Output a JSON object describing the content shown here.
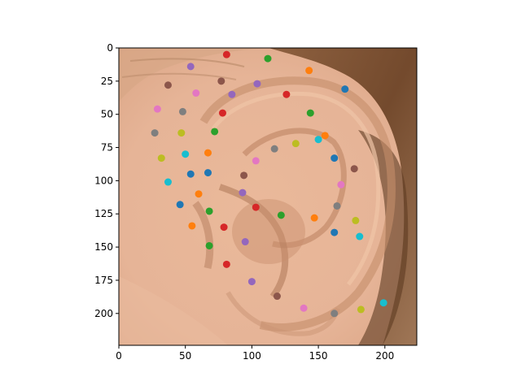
{
  "chart_data": {
    "type": "scatter",
    "background": "ear image (photo)",
    "x_ticks": [
      0,
      50,
      100,
      150,
      200
    ],
    "y_ticks": [
      0,
      25,
      50,
      75,
      100,
      125,
      150,
      175,
      200
    ],
    "xlim": [
      0,
      224
    ],
    "ylim": [
      224,
      0
    ],
    "y_inverted": true,
    "grid": false,
    "colors": {
      "blue": "#1f77b4",
      "orange": "#ff7f0e",
      "green": "#2ca02c",
      "red": "#d62728",
      "purple": "#9467bd",
      "brown": "#8c564b",
      "pink": "#e377c2",
      "gray": "#7f7f7f",
      "olive": "#bcbd22",
      "cyan": "#17becf"
    },
    "points": [
      {
        "x": 81,
        "y": 5,
        "color": "red"
      },
      {
        "x": 112,
        "y": 8,
        "color": "green"
      },
      {
        "x": 54,
        "y": 14,
        "color": "purple"
      },
      {
        "x": 143,
        "y": 17,
        "color": "orange"
      },
      {
        "x": 77,
        "y": 25,
        "color": "brown"
      },
      {
        "x": 37,
        "y": 28,
        "color": "brown"
      },
      {
        "x": 104,
        "y": 27,
        "color": "purple"
      },
      {
        "x": 170,
        "y": 31,
        "color": "blue"
      },
      {
        "x": 58,
        "y": 34,
        "color": "pink"
      },
      {
        "x": 85,
        "y": 35,
        "color": "purple"
      },
      {
        "x": 126,
        "y": 35,
        "color": "red"
      },
      {
        "x": 29,
        "y": 46,
        "color": "pink"
      },
      {
        "x": 48,
        "y": 48,
        "color": "gray"
      },
      {
        "x": 78,
        "y": 49,
        "color": "red"
      },
      {
        "x": 144,
        "y": 49,
        "color": "green"
      },
      {
        "x": 27,
        "y": 64,
        "color": "gray"
      },
      {
        "x": 47,
        "y": 64,
        "color": "olive"
      },
      {
        "x": 72,
        "y": 63,
        "color": "green"
      },
      {
        "x": 155,
        "y": 66,
        "color": "orange"
      },
      {
        "x": 150,
        "y": 69,
        "color": "cyan"
      },
      {
        "x": 133,
        "y": 72,
        "color": "olive"
      },
      {
        "x": 117,
        "y": 76,
        "color": "gray"
      },
      {
        "x": 50,
        "y": 80,
        "color": "cyan"
      },
      {
        "x": 67,
        "y": 79,
        "color": "orange"
      },
      {
        "x": 32,
        "y": 83,
        "color": "olive"
      },
      {
        "x": 162,
        "y": 83,
        "color": "blue"
      },
      {
        "x": 103,
        "y": 85,
        "color": "pink"
      },
      {
        "x": 177,
        "y": 91,
        "color": "brown"
      },
      {
        "x": 54,
        "y": 95,
        "color": "blue"
      },
      {
        "x": 67,
        "y": 94,
        "color": "blue"
      },
      {
        "x": 94,
        "y": 96,
        "color": "brown"
      },
      {
        "x": 37,
        "y": 101,
        "color": "cyan"
      },
      {
        "x": 167,
        "y": 103,
        "color": "pink"
      },
      {
        "x": 60,
        "y": 110,
        "color": "orange"
      },
      {
        "x": 93,
        "y": 109,
        "color": "purple"
      },
      {
        "x": 46,
        "y": 118,
        "color": "blue"
      },
      {
        "x": 103,
        "y": 120,
        "color": "red"
      },
      {
        "x": 164,
        "y": 119,
        "color": "gray"
      },
      {
        "x": 68,
        "y": 123,
        "color": "green"
      },
      {
        "x": 122,
        "y": 126,
        "color": "green"
      },
      {
        "x": 147,
        "y": 128,
        "color": "orange"
      },
      {
        "x": 178,
        "y": 130,
        "color": "olive"
      },
      {
        "x": 55,
        "y": 134,
        "color": "orange"
      },
      {
        "x": 79,
        "y": 135,
        "color": "red"
      },
      {
        "x": 162,
        "y": 139,
        "color": "blue"
      },
      {
        "x": 181,
        "y": 142,
        "color": "cyan"
      },
      {
        "x": 95,
        "y": 146,
        "color": "purple"
      },
      {
        "x": 68,
        "y": 149,
        "color": "green"
      },
      {
        "x": 81,
        "y": 163,
        "color": "red"
      },
      {
        "x": 100,
        "y": 176,
        "color": "purple"
      },
      {
        "x": 119,
        "y": 187,
        "color": "brown"
      },
      {
        "x": 139,
        "y": 196,
        "color": "pink"
      },
      {
        "x": 162,
        "y": 200,
        "color": "gray"
      },
      {
        "x": 182,
        "y": 197,
        "color": "olive"
      },
      {
        "x": 199,
        "y": 192,
        "color": "cyan"
      }
    ]
  }
}
